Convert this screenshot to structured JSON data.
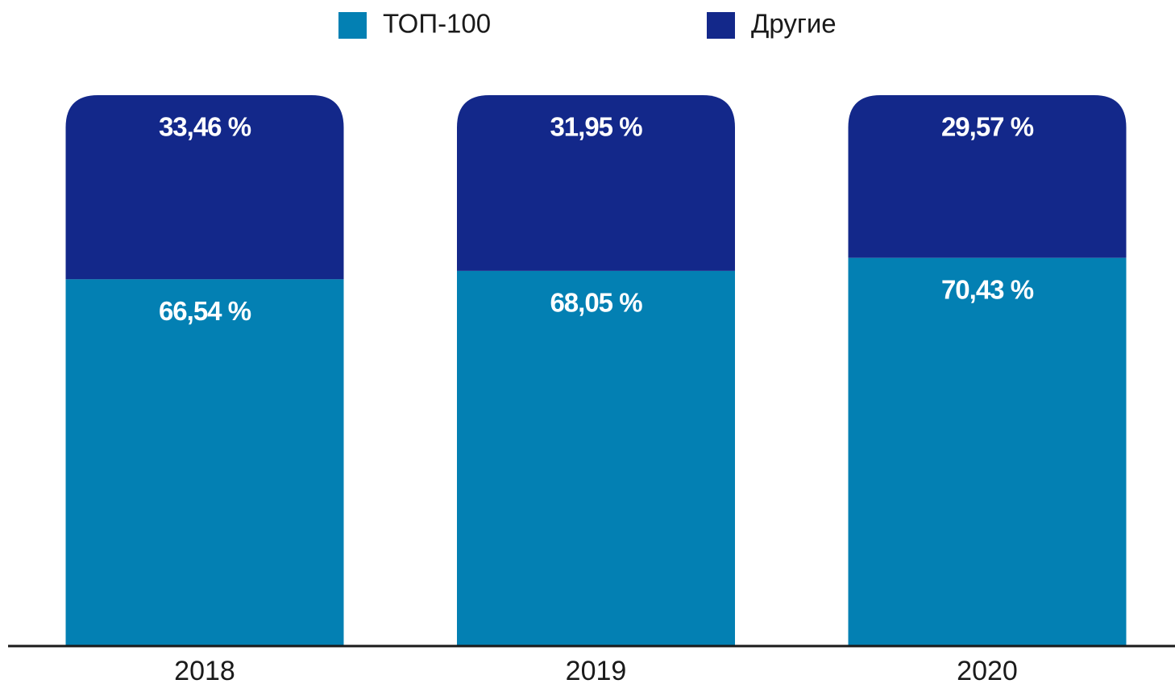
{
  "chart_data": {
    "type": "stacked_bar",
    "categories": [
      "2018",
      "2019",
      "2020"
    ],
    "series": [
      {
        "name": "ТОП-100",
        "color": "#0380b3",
        "values": [
          66.54,
          68.05,
          70.43
        ],
        "value_labels": [
          "66,54 %",
          "68,05 %",
          "70,43 %"
        ]
      },
      {
        "name": "Другие",
        "color": "#13288a",
        "values": [
          33.46,
          31.95,
          29.57
        ],
        "value_labels": [
          "33,46 %",
          "31,95 %",
          "29,57 %"
        ]
      }
    ],
    "ylim": [
      0,
      100
    ]
  }
}
